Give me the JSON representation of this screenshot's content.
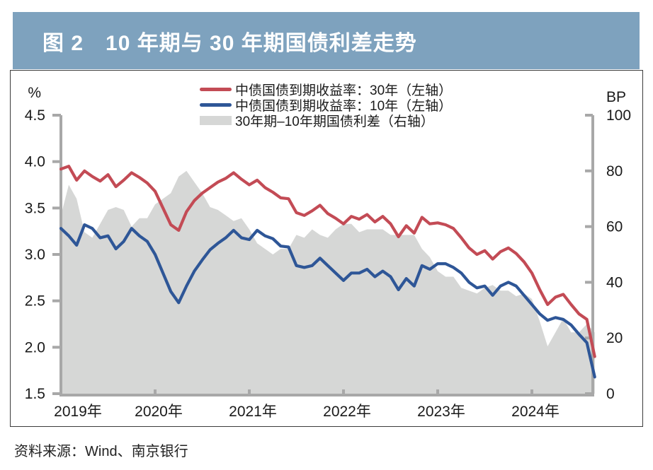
{
  "header": {
    "title": "图 2　10 年期与 30 年期国债利差走势"
  },
  "source_note": "资料来源：Wind、南京银行",
  "colors": {
    "title_bar_bg": "#7ea2be",
    "title_text": "#ffffff",
    "axis": "#a8a8a8",
    "tick_text": "#1a1a1a",
    "panel_border": "#3c3c3c",
    "line_30y": "#c34b55",
    "line_10y": "#2e5697",
    "spread_fill": "#d6d7d6"
  },
  "chart_data": {
    "type": "line",
    "title": "10年期与30年期国债利差走势",
    "frequency": "monthly",
    "x_start": "2019-01",
    "x_end": "2024-09",
    "grid": false,
    "legend_position": "top-center",
    "x_axis": {
      "tick_month_indices": [
        0,
        12,
        24,
        36,
        48,
        60
      ],
      "tick_labels": [
        "2019年",
        "2020年",
        "2021年",
        "2022年",
        "2023年",
        "2024年"
      ]
    },
    "left_axis": {
      "unit": "%",
      "min": 1.5,
      "max": 4.5,
      "tick_labels": [
        "4.5",
        "4.0",
        "3.5",
        "3.0",
        "2.5",
        "2.0",
        "1.5"
      ]
    },
    "right_axis": {
      "unit": "BP",
      "min": 0,
      "max": 100,
      "tick_labels": [
        "100",
        "80",
        "60",
        "40",
        "20",
        "0"
      ]
    },
    "series": [
      {
        "name": "中债国债到期收益率：30年（左轴）",
        "axis": "left",
        "type": "line",
        "color": "#c34b55",
        "values": [
          3.92,
          3.95,
          3.8,
          3.9,
          3.84,
          3.79,
          3.86,
          3.73,
          3.8,
          3.88,
          3.83,
          3.77,
          3.68,
          3.5,
          3.32,
          3.26,
          3.46,
          3.58,
          3.66,
          3.72,
          3.78,
          3.82,
          3.88,
          3.81,
          3.75,
          3.8,
          3.72,
          3.67,
          3.61,
          3.6,
          3.45,
          3.42,
          3.47,
          3.53,
          3.44,
          3.39,
          3.33,
          3.41,
          3.38,
          3.43,
          3.35,
          3.41,
          3.33,
          3.19,
          3.31,
          3.23,
          3.4,
          3.33,
          3.34,
          3.32,
          3.28,
          3.18,
          3.07,
          3.0,
          3.04,
          2.95,
          3.03,
          3.07,
          3.01,
          2.92,
          2.8,
          2.62,
          2.46,
          2.54,
          2.57,
          2.46,
          2.36,
          2.3,
          1.9
        ]
      },
      {
        "name": "中债国债到期收益率：10年（左轴）",
        "axis": "left",
        "type": "line",
        "color": "#2e5697",
        "values": [
          3.28,
          3.2,
          3.1,
          3.32,
          3.28,
          3.18,
          3.2,
          3.06,
          3.14,
          3.28,
          3.2,
          3.14,
          3.0,
          2.8,
          2.6,
          2.48,
          2.66,
          2.82,
          2.94,
          3.05,
          3.12,
          3.18,
          3.26,
          3.18,
          3.16,
          3.26,
          3.2,
          3.17,
          3.09,
          3.08,
          2.88,
          2.86,
          2.88,
          2.96,
          2.88,
          2.8,
          2.72,
          2.8,
          2.8,
          2.84,
          2.76,
          2.82,
          2.76,
          2.62,
          2.74,
          2.66,
          2.88,
          2.84,
          2.9,
          2.9,
          2.86,
          2.8,
          2.7,
          2.64,
          2.66,
          2.56,
          2.66,
          2.7,
          2.66,
          2.56,
          2.46,
          2.36,
          2.29,
          2.32,
          2.3,
          2.24,
          2.14,
          2.05,
          1.68
        ]
      },
      {
        "name": "30年期–10年期国债利差（右轴）",
        "axis": "right",
        "type": "area",
        "color": "#d6d7d6",
        "values": [
          64,
          75,
          70,
          58,
          56,
          61,
          66,
          67,
          66,
          60,
          63,
          63,
          68,
          70,
          72,
          78,
          80,
          76,
          72,
          67,
          66,
          64,
          62,
          63,
          59,
          54,
          52,
          50,
          52,
          52,
          57,
          56,
          59,
          57,
          56,
          59,
          61,
          61,
          58,
          59,
          59,
          59,
          57,
          57,
          57,
          57,
          52,
          49,
          44,
          42,
          42,
          38,
          37,
          36,
          38,
          39,
          37,
          37,
          35,
          36,
          34,
          26,
          17,
          22,
          27,
          22,
          22,
          25,
          22
        ]
      }
    ]
  }
}
